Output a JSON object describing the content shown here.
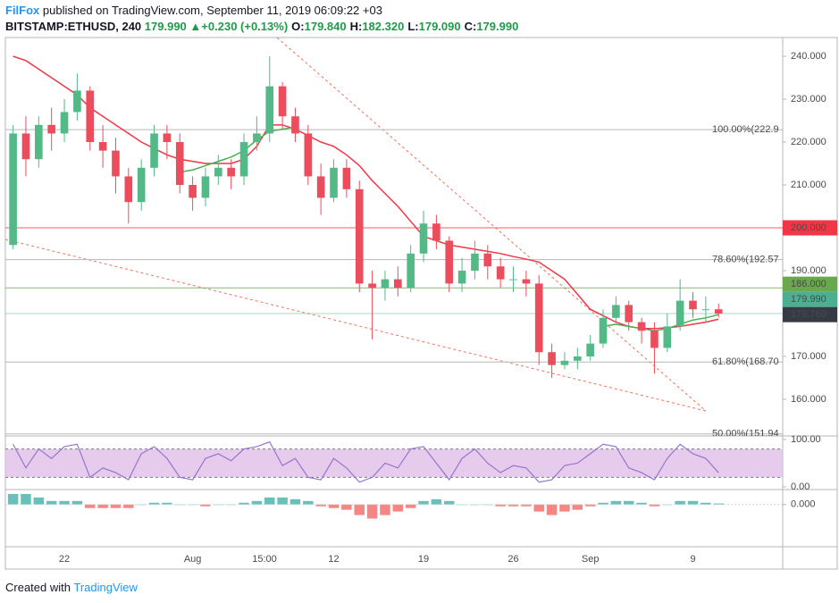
{
  "header": {
    "author": "FilFox",
    "published": "published on TradingView.com, September 11, 2019 06:09:22 +03",
    "symbol": "BITSTAMP:ETHUSD, 240",
    "last": "179.990",
    "arrow": "▲",
    "change": "+0.230 (+0.13%)",
    "ohlc": [
      {
        "label": "O:",
        "value": "179.840"
      },
      {
        "label": "H:",
        "value": "182.320"
      },
      {
        "label": "L:",
        "value": "179.090"
      },
      {
        "label": "C:",
        "value": "179.990"
      }
    ]
  },
  "footer": {
    "created": "Created with",
    "brand": "TradingView"
  },
  "chart_data": [
    {
      "type": "candlestick",
      "up_color": "#53b987",
      "down_color": "#eb4d5c",
      "open": [
        196,
        222,
        216,
        224,
        222,
        227,
        232,
        220,
        218,
        212,
        206,
        214,
        222,
        220,
        210,
        207,
        212,
        214,
        212,
        220,
        222,
        233,
        226,
        222,
        212,
        207,
        214,
        209,
        187,
        186,
        188,
        186,
        194,
        201,
        197,
        187,
        190,
        194,
        191,
        188,
        188,
        187,
        171,
        168,
        169,
        170,
        173,
        179,
        182,
        178,
        176,
        172,
        177,
        183,
        181,
        181
      ],
      "high": [
        224,
        226,
        226,
        228,
        230,
        236,
        233,
        224,
        221,
        214,
        216,
        224,
        224,
        222,
        212,
        214,
        217,
        216,
        222,
        226,
        240,
        234,
        228,
        224,
        215,
        216,
        216,
        211,
        190,
        190,
        191,
        196,
        204,
        203,
        198,
        193,
        197,
        196,
        193,
        191,
        190,
        189,
        173,
        171,
        172,
        175,
        181,
        184,
        183,
        179,
        178,
        180,
        188,
        185,
        184,
        182.32
      ],
      "low": [
        195,
        212,
        214,
        218,
        220,
        225,
        218,
        214,
        208,
        201,
        204,
        212,
        216,
        208,
        204,
        205,
        210,
        209,
        210,
        218,
        220,
        223,
        220,
        210,
        203,
        206,
        207,
        185,
        174,
        183,
        184,
        185,
        192,
        195,
        185,
        185,
        188,
        188,
        186,
        185,
        184,
        168,
        165,
        167,
        167,
        169,
        172,
        178,
        176,
        173,
        166,
        171,
        176,
        179,
        178,
        179.09
      ],
      "close": [
        222,
        216,
        224,
        222,
        227,
        232,
        220,
        218,
        212,
        206,
        214,
        222,
        220,
        210,
        207,
        212,
        214,
        212,
        220,
        222,
        233,
        226,
        222,
        212,
        207,
        214,
        209,
        187,
        186,
        188,
        186,
        194,
        201,
        197,
        187,
        190,
        194,
        191,
        188,
        188,
        187,
        171,
        168,
        169,
        170,
        173,
        179,
        182,
        178,
        176,
        172,
        177,
        183,
        181,
        181,
        179.99
      ],
      "series": [
        {
          "color": "#f23645",
          "values": [
            240,
            239,
            237,
            235,
            233,
            231,
            228,
            226,
            224,
            222,
            220,
            218.5,
            217,
            216,
            215.5,
            215,
            215,
            215,
            216,
            219,
            224,
            224,
            223,
            221.5,
            220,
            219,
            217,
            214.5,
            211,
            208,
            205,
            201.5,
            198,
            197,
            196,
            195.5,
            195,
            194.5,
            194,
            193.3,
            192.7,
            192,
            190,
            188,
            184.5,
            181,
            179.5,
            178,
            177,
            176.5,
            176.5,
            176.7,
            177,
            177.5,
            178,
            178.7
          ]
        },
        {
          "color": "#4caf50",
          "values": [
            null,
            null,
            null,
            null,
            null,
            null,
            null,
            null,
            null,
            null,
            null,
            null,
            null,
            213,
            213.5,
            214.5,
            215.5,
            216.5,
            218,
            220.5,
            222.5,
            223,
            223.5,
            null,
            null,
            null,
            null,
            null,
            null,
            null,
            null,
            null,
            null,
            null,
            null,
            null,
            null,
            null,
            null,
            null,
            null,
            null,
            null,
            null,
            null,
            null,
            177,
            177.5,
            177,
            176.5,
            176,
            176.5,
            177.5,
            178.5,
            179,
            179.76
          ]
        }
      ],
      "xlim": [
        -0.6,
        60
      ],
      "xticks": [
        {
          "value": 4,
          "label": "22"
        },
        {
          "value": 14,
          "label": "Aug"
        },
        {
          "value": 19.6,
          "label": "15:00"
        },
        {
          "value": 25,
          "label": "12"
        },
        {
          "value": 32,
          "label": "19"
        },
        {
          "value": 39,
          "label": "26"
        },
        {
          "value": 45,
          "label": "Sep"
        },
        {
          "value": 53,
          "label": "9"
        }
      ],
      "ylim": [
        151.46,
        244.38
      ],
      "yticks": [
        {
          "value": 160,
          "label": "160.000"
        },
        {
          "value": 170,
          "label": "170.000"
        },
        {
          "value": 180,
          "label": "180.000"
        },
        {
          "value": 190,
          "label": "190.000"
        },
        {
          "value": 200,
          "label": "200.000"
        },
        {
          "value": 210,
          "label": "210.000"
        },
        {
          "value": 220,
          "label": "220.000"
        },
        {
          "value": 230,
          "label": "230.000"
        },
        {
          "value": 240,
          "label": "240.000"
        }
      ],
      "levels": [
        {
          "value": 222.9,
          "label": "100.00%(222.9"
        },
        {
          "value": 192.57,
          "label": "78.60%(192.57"
        },
        {
          "value": 168.7,
          "label": "61.80%(168.70"
        },
        {
          "value": 151.94,
          "label": "50.00%(151.94"
        }
      ],
      "price_lines": [
        {
          "value": 200,
          "label": "200.000",
          "color": "#f23645",
          "line": true
        },
        {
          "value": 186,
          "label": "186.000",
          "color": "#6aa84f",
          "line": true
        },
        {
          "value": 179.99,
          "label": "179.990",
          "color": "#4caf8f",
          "line": true
        },
        {
          "value": 179.76,
          "label": "179.760",
          "color": "#363a45",
          "line": false
        }
      ]
    },
    {
      "type": "line",
      "color": "#9575cd",
      "values": [
        90,
        40,
        80,
        60,
        85,
        90,
        20,
        40,
        30,
        15,
        70,
        85,
        60,
        20,
        15,
        60,
        70,
        55,
        80,
        85,
        95,
        45,
        60,
        20,
        15,
        60,
        40,
        10,
        20,
        50,
        40,
        80,
        85,
        50,
        15,
        60,
        80,
        50,
        30,
        45,
        40,
        10,
        15,
        45,
        50,
        70,
        90,
        85,
        40,
        30,
        15,
        60,
        90,
        70,
        60,
        30
      ],
      "bands": [
        20,
        80
      ],
      "ylim": [
        -5.7,
        107.5
      ],
      "yticks": [
        {
          "value": 100,
          "label": "100.00"
        },
        {
          "value": 0,
          "label": "0.00"
        }
      ]
    },
    {
      "type": "bar",
      "up_color": "#26a69a",
      "down_color": "#ef5350",
      "values": [
        3,
        3,
        2,
        1,
        1,
        1,
        -1,
        -1,
        -1,
        -1,
        0,
        0.5,
        0.5,
        0,
        0,
        -0.5,
        0,
        0,
        0.5,
        1,
        2,
        2,
        1.5,
        1,
        -0.5,
        -1,
        -1.5,
        -3,
        -4,
        -3,
        -2,
        -1,
        1,
        1.5,
        1,
        0,
        0,
        0,
        -0.5,
        -0.5,
        -0.5,
        -2,
        -3,
        -2,
        -1.5,
        -0.5,
        0.5,
        1,
        1,
        0.5,
        -0.5,
        0,
        1,
        1,
        0.5,
        0.3
      ],
      "ylim": [
        -12,
        4
      ],
      "yticks": [
        {
          "value": 0,
          "label": "0.000"
        }
      ]
    }
  ]
}
